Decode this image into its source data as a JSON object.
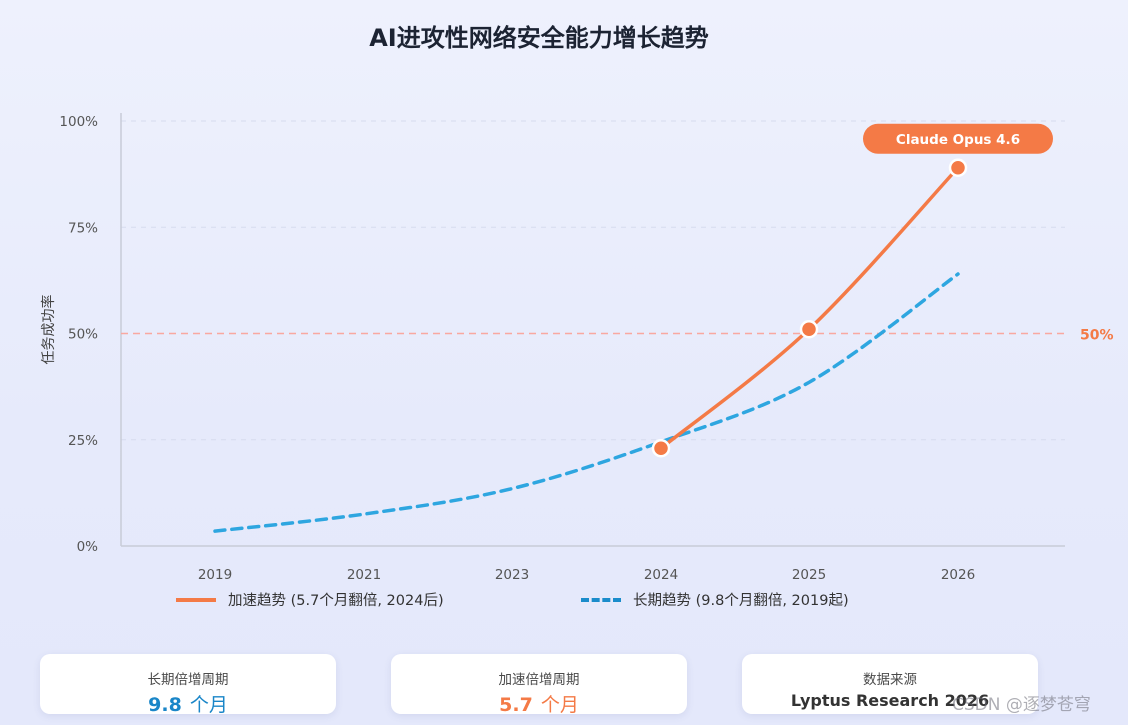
{
  "title": "AI进攻性网络安全能力增长趋势",
  "chart_data": {
    "type": "line",
    "x_categories": [
      "2019",
      "2021",
      "2023",
      "2024",
      "2025",
      "2026"
    ],
    "ylabel": "任务成功率",
    "y_ticks": [
      "0%",
      "25%",
      "50%",
      "75%",
      "100%"
    ],
    "ylim": [
      0,
      100
    ],
    "grid": "horizontal dashed",
    "reference_line": {
      "value": 50,
      "label": "50%",
      "color": "#f9a8a0"
    },
    "series": [
      {
        "name": "加速趋势 (5.7个月翻倍, 2024后)",
        "style": "solid",
        "color": "#f47a46",
        "points": [
          {
            "x": "2024",
            "y": 23
          },
          {
            "x": "2025",
            "y": 51
          },
          {
            "x": "2026",
            "y": 89
          }
        ],
        "markers": [
          {
            "x": "2024",
            "y": 23
          },
          {
            "x": "2025",
            "y": 51
          },
          {
            "x": "2026",
            "y": 89
          }
        ]
      },
      {
        "name": "长期趋势 (9.8个月翻倍, 2019起)",
        "style": "dashed",
        "color": "#2ea6e0",
        "points": [
          {
            "x": "2019",
            "y": 3.5
          },
          {
            "x": "2021",
            "y": 7.5
          },
          {
            "x": "2023",
            "y": 13.5
          },
          {
            "x": "2024",
            "y": 24.5
          },
          {
            "x": "2025",
            "y": 38.5
          },
          {
            "x": "2026",
            "y": 64
          }
        ]
      }
    ],
    "annotation": {
      "text": "Claude Opus 4.6",
      "x": "2026",
      "y": 89,
      "color": "#f47a46"
    }
  },
  "legend": {
    "accelerated": "加速趋势 (5.7个月翻倍, 2024后)",
    "longterm": "长期趋势 (9.8个月翻倍, 2019起)"
  },
  "cards": {
    "longterm": {
      "label": "长期倍增周期",
      "number": "9.8",
      "unit": "个月",
      "color": "#1a86c8"
    },
    "accelerated": {
      "label": "加速倍增周期",
      "number": "5.7",
      "unit": "个月",
      "color": "#f47a46"
    },
    "source": {
      "label": "数据来源",
      "value": "Lyptus Research 2026"
    }
  },
  "watermark": "CSDN @逐梦苍穹"
}
